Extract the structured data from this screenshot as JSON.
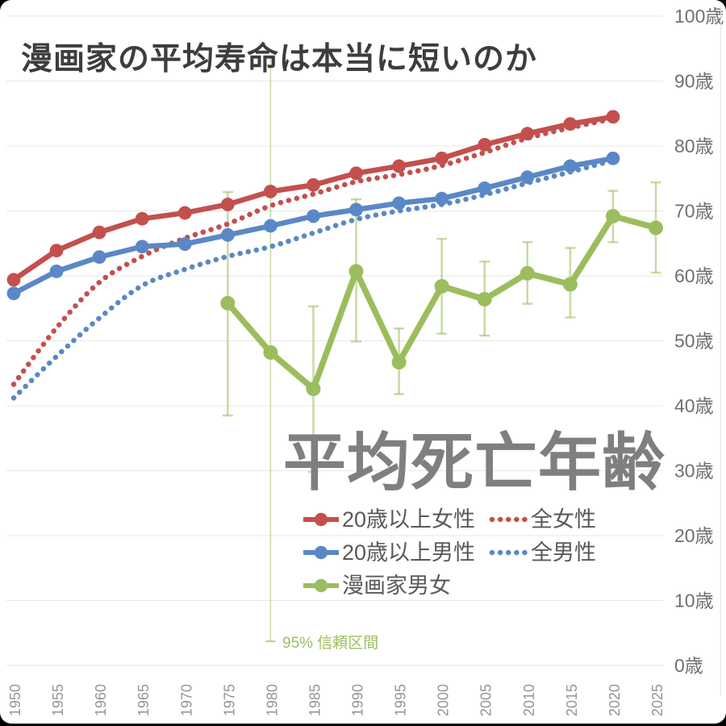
{
  "title": "漫画家の平均寿命は本当に短いのか",
  "watermark": "平均死亡年齢",
  "legend": {
    "items": [
      {
        "label": "20歳以上女性",
        "color": "red",
        "style": "solid"
      },
      {
        "label": "全女性",
        "color": "red",
        "style": "dotted"
      },
      {
        "label": "20歳以上男性",
        "color": "blue",
        "style": "solid"
      },
      {
        "label": "全男性",
        "color": "blue",
        "style": "dotted"
      },
      {
        "label": "漫画家男女",
        "color": "green",
        "style": "solid"
      }
    ]
  },
  "colors": {
    "red": "#c3504d",
    "blue": "#5a88c6",
    "green": "#9cbd5d",
    "grid": "#e7e7e7",
    "title_text": "#3d3d3d",
    "watermark_text": "#7f7f7f",
    "legend_text": "#595959",
    "y_tick_text": "#6f6f6f",
    "x_tick_text": "#949494"
  },
  "chart_data": {
    "type": "line",
    "title": "漫画家の平均寿命は本当に短いのか",
    "big_label": "平均死亡年齢",
    "y_unit": "歳",
    "ylim": [
      0,
      100
    ],
    "y_ticks": [
      0,
      10,
      20,
      30,
      40,
      50,
      60,
      70,
      80,
      90,
      100
    ],
    "y_tick_suffix": "歳",
    "x_ticks": [
      1950,
      1955,
      1960,
      1965,
      1970,
      1975,
      1980,
      1985,
      1990,
      1995,
      2000,
      2005,
      2010,
      2015,
      2020,
      2025
    ],
    "grid": "horizontal-only",
    "legend_position": "inside-bottom-center",
    "series": [
      {
        "name": "20歳以上女性",
        "color": "red",
        "style": "solid",
        "x": [
          1950,
          1955,
          1960,
          1965,
          1970,
          1975,
          1980,
          1985,
          1990,
          1995,
          2000,
          2005,
          2010,
          2015,
          2020
        ],
        "y": [
          59.4,
          63.9,
          66.7,
          68.8,
          69.7,
          71.0,
          73.0,
          74.0,
          75.8,
          76.9,
          78.1,
          80.2,
          81.9,
          83.4,
          84.5
        ]
      },
      {
        "name": "全女性",
        "color": "red",
        "style": "dotted",
        "x": [
          1950,
          1955,
          1960,
          1965,
          1970,
          1975,
          1980,
          1985,
          1990,
          1995,
          2000,
          2005,
          2010,
          2015,
          2020
        ],
        "y": [
          43.3,
          52.0,
          59.0,
          63.0,
          65.8,
          68.0,
          70.8,
          72.6,
          74.5,
          75.6,
          77.0,
          79.0,
          81.2,
          82.8,
          84.2
        ]
      },
      {
        "name": "20歳以上男性",
        "color": "blue",
        "style": "solid",
        "x": [
          1950,
          1955,
          1960,
          1965,
          1970,
          1975,
          1980,
          1985,
          1990,
          1995,
          2000,
          2005,
          2010,
          2015,
          2020
        ],
        "y": [
          57.3,
          60.7,
          62.9,
          64.5,
          64.9,
          66.3,
          67.7,
          69.2,
          70.2,
          71.2,
          71.9,
          73.5,
          75.2,
          76.9,
          78.1
        ]
      },
      {
        "name": "全男性",
        "color": "blue",
        "style": "dotted",
        "x": [
          1950,
          1955,
          1960,
          1965,
          1970,
          1975,
          1980,
          1985,
          1990,
          1995,
          2000,
          2005,
          2010,
          2015,
          2020
        ],
        "y": [
          41.2,
          47.6,
          53.5,
          58.5,
          61.0,
          63.0,
          64.5,
          66.6,
          68.7,
          70.0,
          71.0,
          72.5,
          74.3,
          76.0,
          77.8
        ]
      },
      {
        "name": "漫画家男女",
        "color": "green",
        "style": "solid-with-errorbars",
        "x": [
          1975,
          1980,
          1985,
          1990,
          1995,
          2000,
          2005,
          2010,
          2015,
          2020,
          2025
        ],
        "y": [
          55.8,
          48.2,
          42.6,
          60.7,
          46.7,
          58.4,
          56.4,
          60.4,
          58.7,
          69.2,
          67.4
        ],
        "ci_low": [
          38.5,
          null,
          29.8,
          49.9,
          41.8,
          51.1,
          50.8,
          55.7,
          53.6,
          65.2,
          60.5
        ],
        "ci_high": [
          72.9,
          null,
          55.3,
          71.8,
          51.9,
          65.7,
          62.2,
          65.2,
          64.3,
          73.1,
          74.4
        ]
      }
    ],
    "annotation": {
      "text": "95% 信頼区間",
      "year": 1980
    }
  }
}
